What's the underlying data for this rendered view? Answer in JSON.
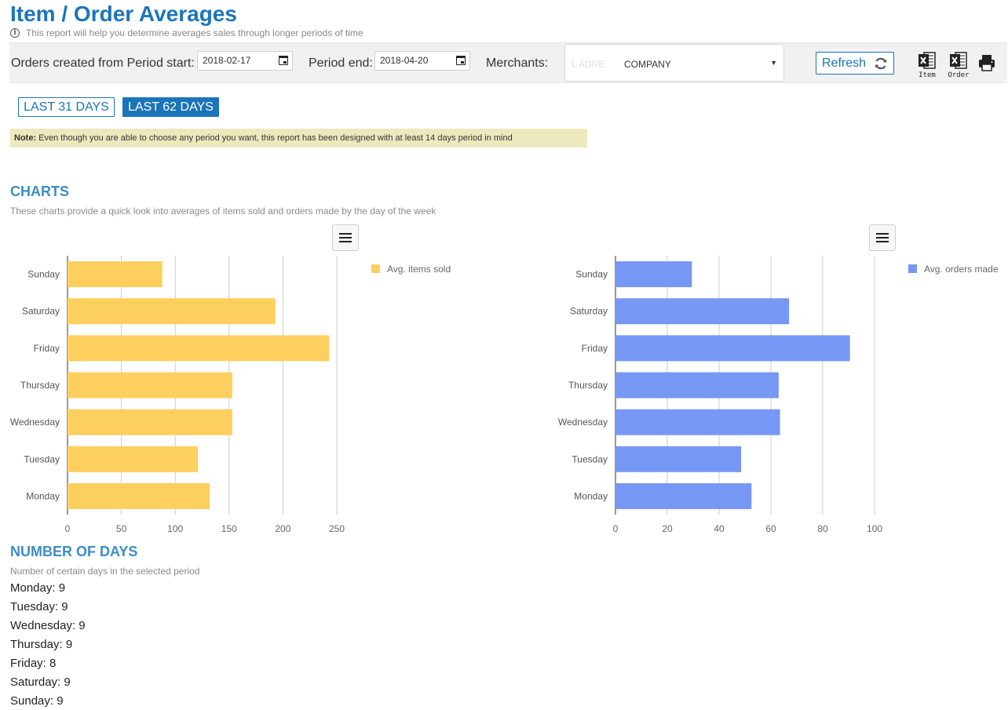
{
  "header": {
    "title": "Item / Order Averages",
    "subtitle": "This report will help you determine averages sales through longer periods of time",
    "info_icon": "info-icon"
  },
  "filters": {
    "period_start_label": "Orders created from Period start:",
    "period_start_value": "2018-02-17",
    "period_end_label": "Period end:",
    "period_end_value": "2018-04-20",
    "merchants_label": "Merchants:",
    "merchants_obscured": "L ADRE",
    "merchants_value": "COMPANY",
    "refresh_label": "Refresh",
    "export_item_caption": "Item",
    "export_order_caption": "Order"
  },
  "ranges": {
    "last31": "LAST 31 DAYS",
    "last62": "LAST 62 DAYS"
  },
  "note": {
    "prefix": "Note:",
    "text": "Even though you are able to choose any period you want, this report has been designed with at least 14 days period in mind"
  },
  "charts_section": {
    "heading": "CHARTS",
    "subheading": "These charts provide a quick look into averages of items sold and orders made by the day of the week"
  },
  "chart_data": [
    {
      "type": "bar",
      "orientation": "horizontal",
      "categories": [
        "Sunday",
        "Saturday",
        "Friday",
        "Thursday",
        "Wednesday",
        "Tuesday",
        "Monday"
      ],
      "series": [
        {
          "name": "Avg. items sold",
          "values": [
            88,
            193,
            243,
            153,
            153,
            121,
            132
          ],
          "color": "#fdcf5e"
        }
      ],
      "xlim": [
        0,
        250
      ],
      "ticks": [
        0,
        50,
        100,
        150,
        200,
        250
      ],
      "grid": true,
      "legend": "top-right"
    },
    {
      "type": "bar",
      "orientation": "horizontal",
      "categories": [
        "Sunday",
        "Saturday",
        "Friday",
        "Thursday",
        "Wednesday",
        "Tuesday",
        "Monday"
      ],
      "series": [
        {
          "name": "Avg. orders made",
          "values": [
            29.5,
            67,
            90.5,
            63,
            63.5,
            48.5,
            52.5
          ],
          "color": "#7797f4"
        }
      ],
      "xlim": [
        0,
        100
      ],
      "ticks": [
        0,
        20,
        40,
        60,
        80,
        100
      ],
      "grid": true,
      "legend": "top-right"
    }
  ],
  "days_section": {
    "heading": "NUMBER OF DAYS",
    "subheading": "Number of certain days in the selected period",
    "items": [
      "Monday: 9",
      "Tuesday: 9",
      "Wednesday: 9",
      "Thursday: 9",
      "Friday: 8",
      "Saturday: 9",
      "Sunday: 9"
    ]
  }
}
